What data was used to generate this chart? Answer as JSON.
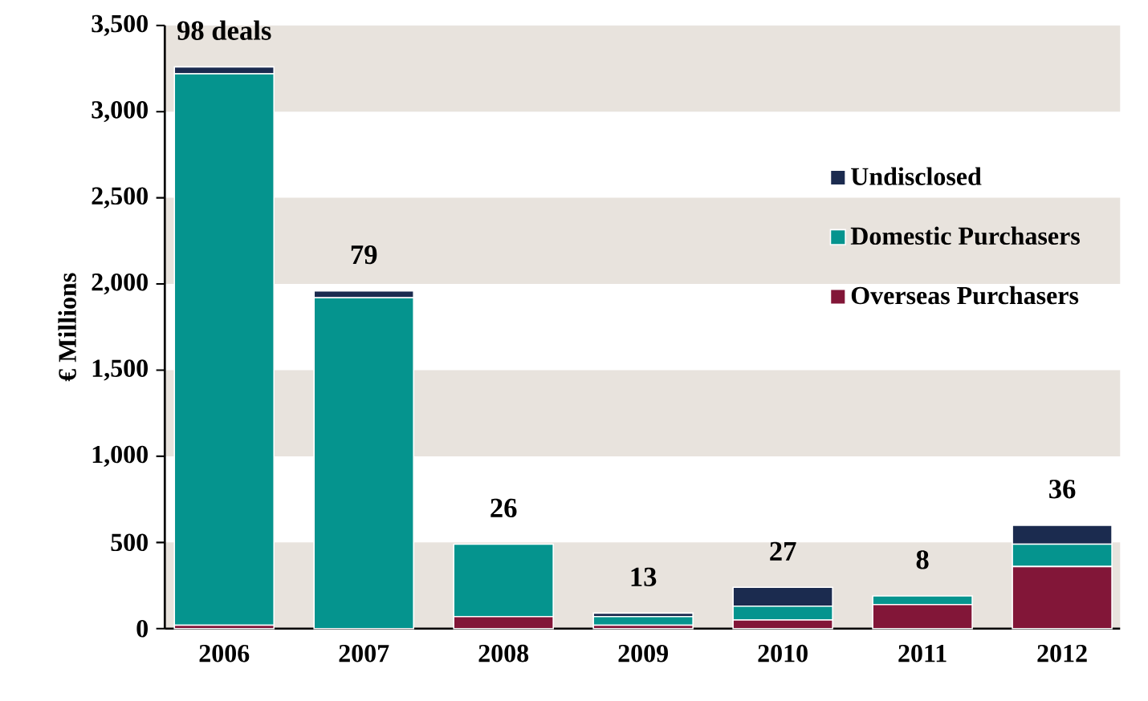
{
  "chart_data": {
    "type": "bar",
    "stacked": true,
    "ylabel": "€ Millions",
    "categories": [
      "2006",
      "2007",
      "2008",
      "2009",
      "2010",
      "2011",
      "2012"
    ],
    "series": [
      {
        "name": "Overseas Purchasers",
        "color": "#821638",
        "values": [
          20,
          null,
          70,
          20,
          50,
          140,
          360
        ]
      },
      {
        "name": "Domestic Purchasers",
        "color": "#05948e",
        "values": [
          3200,
          1920,
          420,
          50,
          80,
          50,
          130
        ]
      },
      {
        "name": "Undisclosed",
        "color": "#1b2b4f",
        "values": [
          40,
          40,
          null,
          20,
          110,
          null,
          110
        ]
      }
    ],
    "ylim": [
      0,
      3500
    ],
    "yticks": [
      {
        "value": 0,
        "label": "0"
      },
      {
        "value": 500,
        "label": "500"
      },
      {
        "value": 1000,
        "label": "1,000"
      },
      {
        "value": 1500,
        "label": "1,500"
      },
      {
        "value": 2000,
        "label": "2,000"
      },
      {
        "value": 2500,
        "label": "2,500"
      },
      {
        "value": 3000,
        "label": "3,000"
      },
      {
        "value": 3500,
        "label": "3,500"
      }
    ],
    "bands": [
      {
        "axis": "y",
        "from": 0,
        "to": 500,
        "color": "#e8e3dd"
      },
      {
        "axis": "y",
        "from": 1000,
        "to": 1500,
        "color": "#e8e3dd"
      },
      {
        "axis": "y",
        "from": 2000,
        "to": 2500,
        "color": "#e8e3dd"
      },
      {
        "axis": "y",
        "from": 3000,
        "to": 3500,
        "color": "#e8e3dd"
      }
    ],
    "annotations": [
      {
        "text": "98 deals",
        "x": "2006",
        "y": 3260
      },
      {
        "text": "79",
        "x": "2007",
        "y": 1960
      },
      {
        "text": "26",
        "x": "2008",
        "y": 490
      },
      {
        "text": "13",
        "x": "2009",
        "y": 90
      },
      {
        "text": "27",
        "x": "2010",
        "y": 240
      },
      {
        "text": "8",
        "x": "2011",
        "y": 190
      },
      {
        "text": "36",
        "x": "2012",
        "y": 600
      }
    ],
    "legend": "top right",
    "grid": false
  }
}
